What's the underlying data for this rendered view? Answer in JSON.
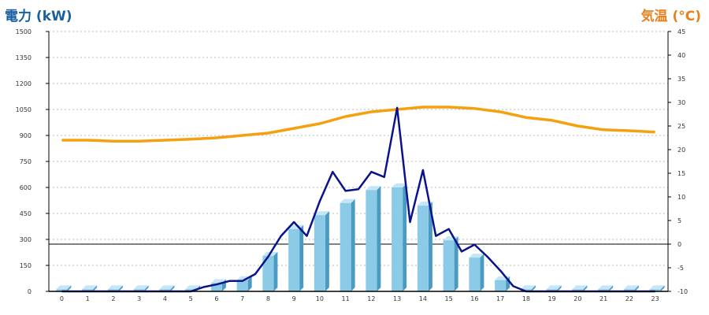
{
  "chart_data": {
    "type": "bar",
    "left_axis_title": "電力 (kW)",
    "right_axis_title": "気温 (°C)",
    "colors": {
      "left_title": "#1a5fa0",
      "right_title": "#e8801e",
      "bar_front": "#8ccbe8",
      "bar_side": "#4a9ac2",
      "bar_top": "#c4e6f6",
      "power_line": "#0a138a",
      "temperature_line": "#f5a00f",
      "grid": "#bbbbbb",
      "axis": "#000000",
      "zero_line": "#000000"
    },
    "categories": [
      "0",
      "1",
      "2",
      "3",
      "4",
      "5",
      "6",
      "7",
      "8",
      "9",
      "10",
      "11",
      "12",
      "13",
      "14",
      "15",
      "16",
      "17",
      "18",
      "19",
      "20",
      "21",
      "22",
      "23"
    ],
    "left_axis": {
      "min": 0,
      "max": 1500,
      "ticks": [
        "0",
        "150",
        "300",
        "450",
        "600",
        "750",
        "900",
        "1050",
        "1200",
        "1350",
        "1500"
      ]
    },
    "right_axis": {
      "min": -10,
      "max": 45,
      "ticks": [
        "-10",
        "-5",
        "0",
        "5",
        "10",
        "15",
        "20",
        "25",
        "30",
        "35",
        "40",
        "45"
      ]
    },
    "grid": true,
    "bars": {
      "values": [
        12,
        12,
        12,
        12,
        12,
        12,
        48,
        65,
        205,
        360,
        440,
        510,
        585,
        600,
        495,
        295,
        195,
        65,
        12,
        12,
        12,
        12,
        12,
        12
      ]
    },
    "power_line": {
      "x": [
        0,
        1,
        2,
        3,
        4,
        5,
        5.5,
        6,
        6.5,
        7,
        7.5,
        8,
        8.5,
        9,
        9.5,
        10,
        10.5,
        11,
        11.5,
        12,
        12.5,
        13,
        13.5,
        14,
        14.5,
        15,
        15.5,
        16,
        16.5,
        17,
        17.5,
        18,
        19,
        20,
        21,
        22,
        23
      ],
      "values": [
        0,
        0,
        0,
        0,
        0,
        0,
        25,
        40,
        60,
        60,
        100,
        200,
        320,
        400,
        320,
        520,
        690,
        580,
        590,
        690,
        660,
        1060,
        400,
        700,
        320,
        360,
        230,
        270,
        200,
        120,
        30,
        0,
        0,
        0,
        0,
        0,
        0
      ]
    },
    "temperature_line": {
      "values": [
        22,
        22,
        21.8,
        21.8,
        22,
        22.2,
        22.5,
        23,
        23.5,
        24.5,
        25.5,
        27,
        28,
        28.5,
        29,
        29,
        28.7,
        28,
        26.8,
        26.2,
        25,
        24.2,
        24,
        23.7
      ]
    }
  }
}
